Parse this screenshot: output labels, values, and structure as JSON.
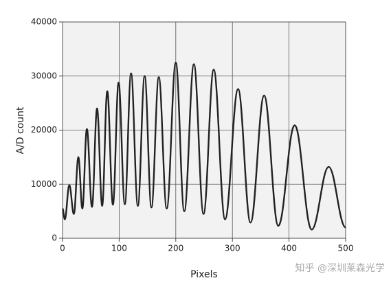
{
  "chart_data": {
    "type": "line",
    "x_label": "Pixels",
    "y_label": "A/D count",
    "watermark": "知乎 @深圳莱森光学",
    "x": [
      0,
      4,
      12,
      20,
      28,
      35,
      43,
      52,
      61,
      70,
      79,
      89,
      99,
      110,
      121,
      133,
      145,
      157,
      170,
      184,
      200,
      215,
      232,
      249,
      267,
      287,
      310,
      332,
      356,
      381,
      410,
      440,
      470,
      500
    ],
    "series": [
      {
        "name": "A/D count",
        "color": "#222222",
        "values": [
          5500,
          3500,
          9800,
          4500,
          15000,
          5500,
          20200,
          5800,
          24000,
          6000,
          27200,
          6200,
          28800,
          6300,
          30500,
          6000,
          30000,
          5700,
          29800,
          5500,
          32500,
          5000,
          32200,
          4500,
          31200,
          3500,
          27600,
          2900,
          26400,
          2300,
          20900,
          1600,
          13200,
          2000
        ]
      }
    ],
    "xlim": [
      0,
      500
    ],
    "xticks": [
      0,
      100,
      200,
      300,
      400,
      500
    ],
    "ylim": [
      0,
      40000
    ],
    "yticks": [
      0,
      10000,
      20000,
      30000,
      40000
    ],
    "grid": true
  }
}
